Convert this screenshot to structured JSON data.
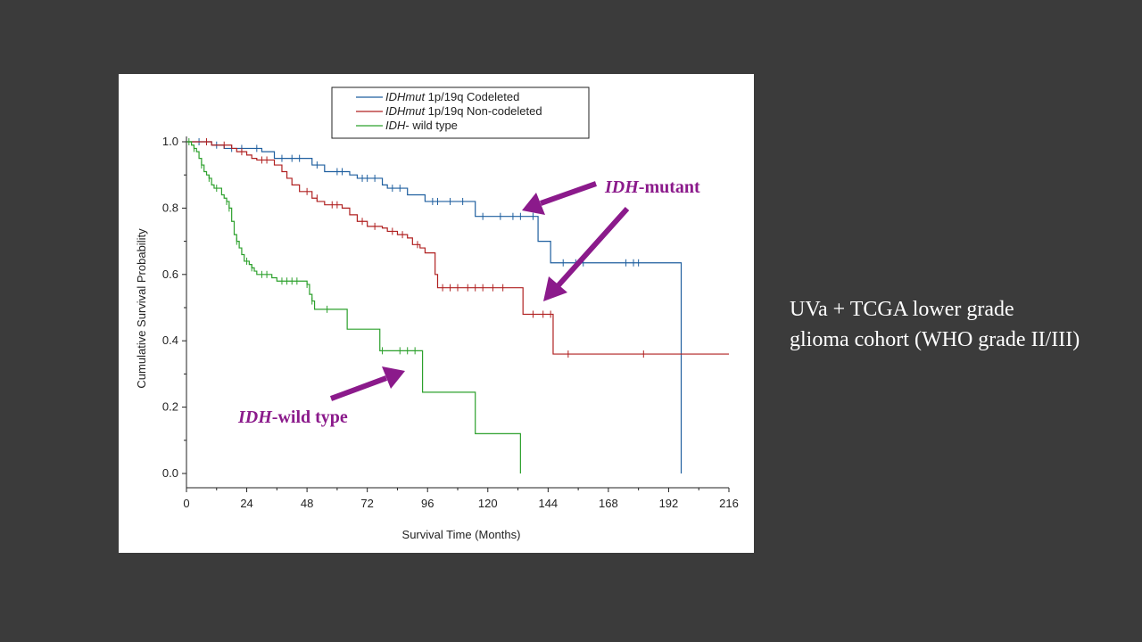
{
  "caption": {
    "line1": "UVa + TCGA lower grade",
    "line2": "glioma cohort (WHO grade II/III)"
  },
  "annotations": {
    "mutant": {
      "italic": "IDH",
      "rest": "-mutant"
    },
    "wild": {
      "italic": "IDH",
      "rest": "-wild type"
    }
  },
  "colors": {
    "annotation": "#8b1a8b",
    "codeleted": "#1f5f9f",
    "noncodeleted": "#b02020",
    "wildtype": "#2ca02c",
    "slide_background": "#3b3b3b"
  },
  "chart_data": {
    "type": "line",
    "step": true,
    "xlabel": "Survival Time (Months)",
    "ylabel": "Cumulative Survival Probability",
    "xlim": [
      0,
      216
    ],
    "ylim": [
      0,
      1.0
    ],
    "xticks": [
      0,
      24,
      48,
      72,
      96,
      120,
      144,
      168,
      192,
      216
    ],
    "yticks": [
      0.0,
      0.2,
      0.4,
      0.6,
      0.8,
      1.0
    ],
    "ytick_labels": [
      "0.0",
      "0.2",
      "0.4",
      "0.6",
      "0.8",
      "1.0"
    ],
    "legend_position": "top-center",
    "series": [
      {
        "name_italic": "IDHmut",
        "name_rest": " 1p/19q Codeleted",
        "color": "#1f5f9f",
        "steps": [
          [
            0,
            1.0
          ],
          [
            10,
            0.99
          ],
          [
            15,
            0.98
          ],
          [
            30,
            0.97
          ],
          [
            35,
            0.95
          ],
          [
            50,
            0.93
          ],
          [
            55,
            0.91
          ],
          [
            65,
            0.9
          ],
          [
            68,
            0.89
          ],
          [
            78,
            0.87
          ],
          [
            80,
            0.86
          ],
          [
            88,
            0.84
          ],
          [
            95,
            0.82
          ],
          [
            115,
            0.81
          ],
          [
            115,
            0.775
          ],
          [
            140,
            0.775
          ],
          [
            140,
            0.7
          ],
          [
            145,
            0.7
          ],
          [
            145,
            0.635
          ],
          [
            197,
            0.635
          ],
          [
            197,
            0.0
          ]
        ],
        "censored": [
          [
            5,
            1.0
          ],
          [
            12,
            0.99
          ],
          [
            18,
            0.98
          ],
          [
            22,
            0.98
          ],
          [
            28,
            0.98
          ],
          [
            38,
            0.95
          ],
          [
            42,
            0.95
          ],
          [
            45,
            0.95
          ],
          [
            52,
            0.93
          ],
          [
            60,
            0.91
          ],
          [
            62,
            0.91
          ],
          [
            70,
            0.89
          ],
          [
            72,
            0.89
          ],
          [
            75,
            0.89
          ],
          [
            82,
            0.86
          ],
          [
            85,
            0.86
          ],
          [
            98,
            0.82
          ],
          [
            100,
            0.82
          ],
          [
            105,
            0.82
          ],
          [
            110,
            0.82
          ],
          [
            118,
            0.775
          ],
          [
            125,
            0.775
          ],
          [
            130,
            0.775
          ],
          [
            133,
            0.775
          ],
          [
            138,
            0.775
          ],
          [
            150,
            0.635
          ],
          [
            155,
            0.635
          ],
          [
            158,
            0.635
          ],
          [
            175,
            0.635
          ],
          [
            178,
            0.635
          ],
          [
            180,
            0.635
          ]
        ]
      },
      {
        "name_italic": "IDHmut",
        "name_rest": " 1p/19q Non-codeleted",
        "color": "#b02020",
        "steps": [
          [
            0,
            1.0
          ],
          [
            10,
            0.99
          ],
          [
            18,
            0.98
          ],
          [
            20,
            0.97
          ],
          [
            24,
            0.96
          ],
          [
            26,
            0.95
          ],
          [
            28,
            0.945
          ],
          [
            35,
            0.93
          ],
          [
            38,
            0.91
          ],
          [
            40,
            0.89
          ],
          [
            42,
            0.87
          ],
          [
            45,
            0.85
          ],
          [
            50,
            0.83
          ],
          [
            52,
            0.82
          ],
          [
            55,
            0.81
          ],
          [
            62,
            0.8
          ],
          [
            65,
            0.78
          ],
          [
            68,
            0.76
          ],
          [
            72,
            0.745
          ],
          [
            78,
            0.74
          ],
          [
            80,
            0.73
          ],
          [
            84,
            0.72
          ],
          [
            88,
            0.71
          ],
          [
            90,
            0.69
          ],
          [
            93,
            0.68
          ],
          [
            95,
            0.665
          ],
          [
            99,
            0.665
          ],
          [
            99,
            0.6
          ],
          [
            100,
            0.6
          ],
          [
            100,
            0.56
          ],
          [
            134,
            0.56
          ],
          [
            134,
            0.48
          ],
          [
            146,
            0.48
          ],
          [
            146,
            0.36
          ],
          [
            216,
            0.36
          ]
        ],
        "censored": [
          [
            8,
            1.0
          ],
          [
            15,
            0.99
          ],
          [
            22,
            0.97
          ],
          [
            30,
            0.945
          ],
          [
            32,
            0.945
          ],
          [
            48,
            0.85
          ],
          [
            52,
            0.83
          ],
          [
            58,
            0.81
          ],
          [
            60,
            0.81
          ],
          [
            70,
            0.76
          ],
          [
            75,
            0.745
          ],
          [
            82,
            0.73
          ],
          [
            86,
            0.72
          ],
          [
            92,
            0.69
          ],
          [
            102,
            0.56
          ],
          [
            105,
            0.56
          ],
          [
            108,
            0.56
          ],
          [
            112,
            0.56
          ],
          [
            115,
            0.56
          ],
          [
            118,
            0.56
          ],
          [
            122,
            0.56
          ],
          [
            126,
            0.56
          ],
          [
            138,
            0.48
          ],
          [
            142,
            0.48
          ],
          [
            145,
            0.48
          ],
          [
            152,
            0.36
          ],
          [
            182,
            0.36
          ]
        ]
      },
      {
        "name_italic": "IDH",
        "name_rest": "- wild type",
        "color": "#2ca02c",
        "steps": [
          [
            0,
            1.0
          ],
          [
            2,
            0.99
          ],
          [
            3,
            0.98
          ],
          [
            4,
            0.97
          ],
          [
            5,
            0.95
          ],
          [
            6,
            0.93
          ],
          [
            7,
            0.91
          ],
          [
            8,
            0.9
          ],
          [
            9,
            0.89
          ],
          [
            10,
            0.87
          ],
          [
            11,
            0.86
          ],
          [
            14,
            0.84
          ],
          [
            15,
            0.83
          ],
          [
            16,
            0.82
          ],
          [
            17,
            0.8
          ],
          [
            18,
            0.76
          ],
          [
            19,
            0.72
          ],
          [
            20,
            0.7
          ],
          [
            21,
            0.68
          ],
          [
            22,
            0.66
          ],
          [
            23,
            0.64
          ],
          [
            25,
            0.63
          ],
          [
            26,
            0.62
          ],
          [
            27,
            0.61
          ],
          [
            28,
            0.6
          ],
          [
            34,
            0.59
          ],
          [
            36,
            0.58
          ],
          [
            48,
            0.57
          ],
          [
            49,
            0.54
          ],
          [
            50,
            0.52
          ],
          [
            51,
            0.495
          ],
          [
            64,
            0.495
          ],
          [
            64,
            0.435
          ],
          [
            77,
            0.435
          ],
          [
            77,
            0.37
          ],
          [
            94,
            0.37
          ],
          [
            94,
            0.245
          ],
          [
            115,
            0.245
          ],
          [
            115,
            0.12
          ],
          [
            133,
            0.12
          ],
          [
            133,
            0.0
          ]
        ],
        "censored": [
          [
            1,
            1.0
          ],
          [
            3,
            0.98
          ],
          [
            6,
            0.93
          ],
          [
            9,
            0.89
          ],
          [
            12,
            0.86
          ],
          [
            16,
            0.82
          ],
          [
            17,
            0.8
          ],
          [
            20,
            0.7
          ],
          [
            24,
            0.64
          ],
          [
            26,
            0.62
          ],
          [
            30,
            0.6
          ],
          [
            32,
            0.6
          ],
          [
            38,
            0.58
          ],
          [
            40,
            0.58
          ],
          [
            42,
            0.58
          ],
          [
            44,
            0.58
          ],
          [
            48,
            0.57
          ],
          [
            50,
            0.52
          ],
          [
            56,
            0.495
          ],
          [
            78,
            0.37
          ],
          [
            85,
            0.37
          ],
          [
            88,
            0.37
          ],
          [
            91,
            0.37
          ]
        ]
      }
    ]
  }
}
